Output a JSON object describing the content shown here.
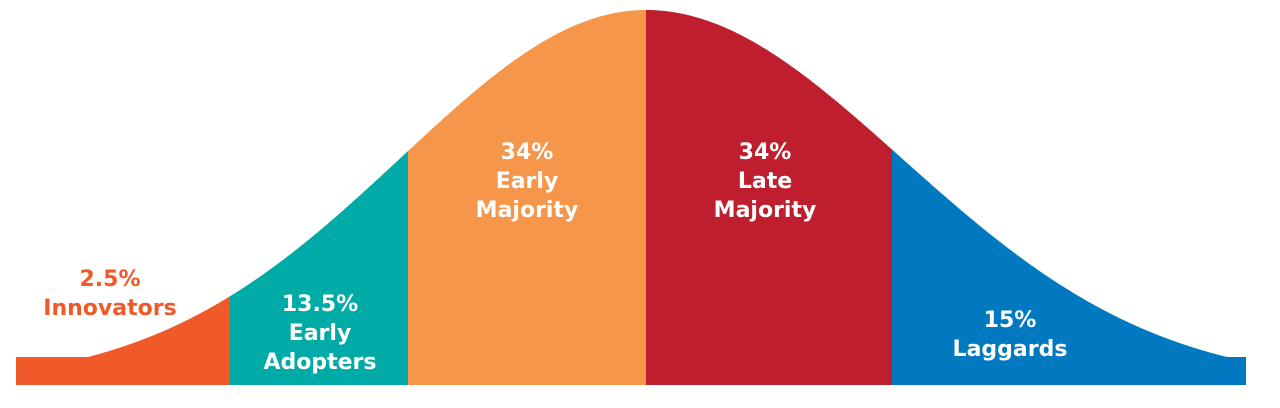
{
  "segments": [
    {
      "percent": "2.5%",
      "label": [
        "Innovators"
      ]
    },
    {
      "percent": "13.5%",
      "label": [
        "Early",
        "Adopters"
      ]
    },
    {
      "percent": "34%",
      "label": [
        "Early",
        "Majority"
      ]
    },
    {
      "percent": "34%",
      "label": [
        "Late",
        "Majority"
      ]
    },
    {
      "percent": "15%",
      "label": [
        "Laggards"
      ]
    }
  ]
}
